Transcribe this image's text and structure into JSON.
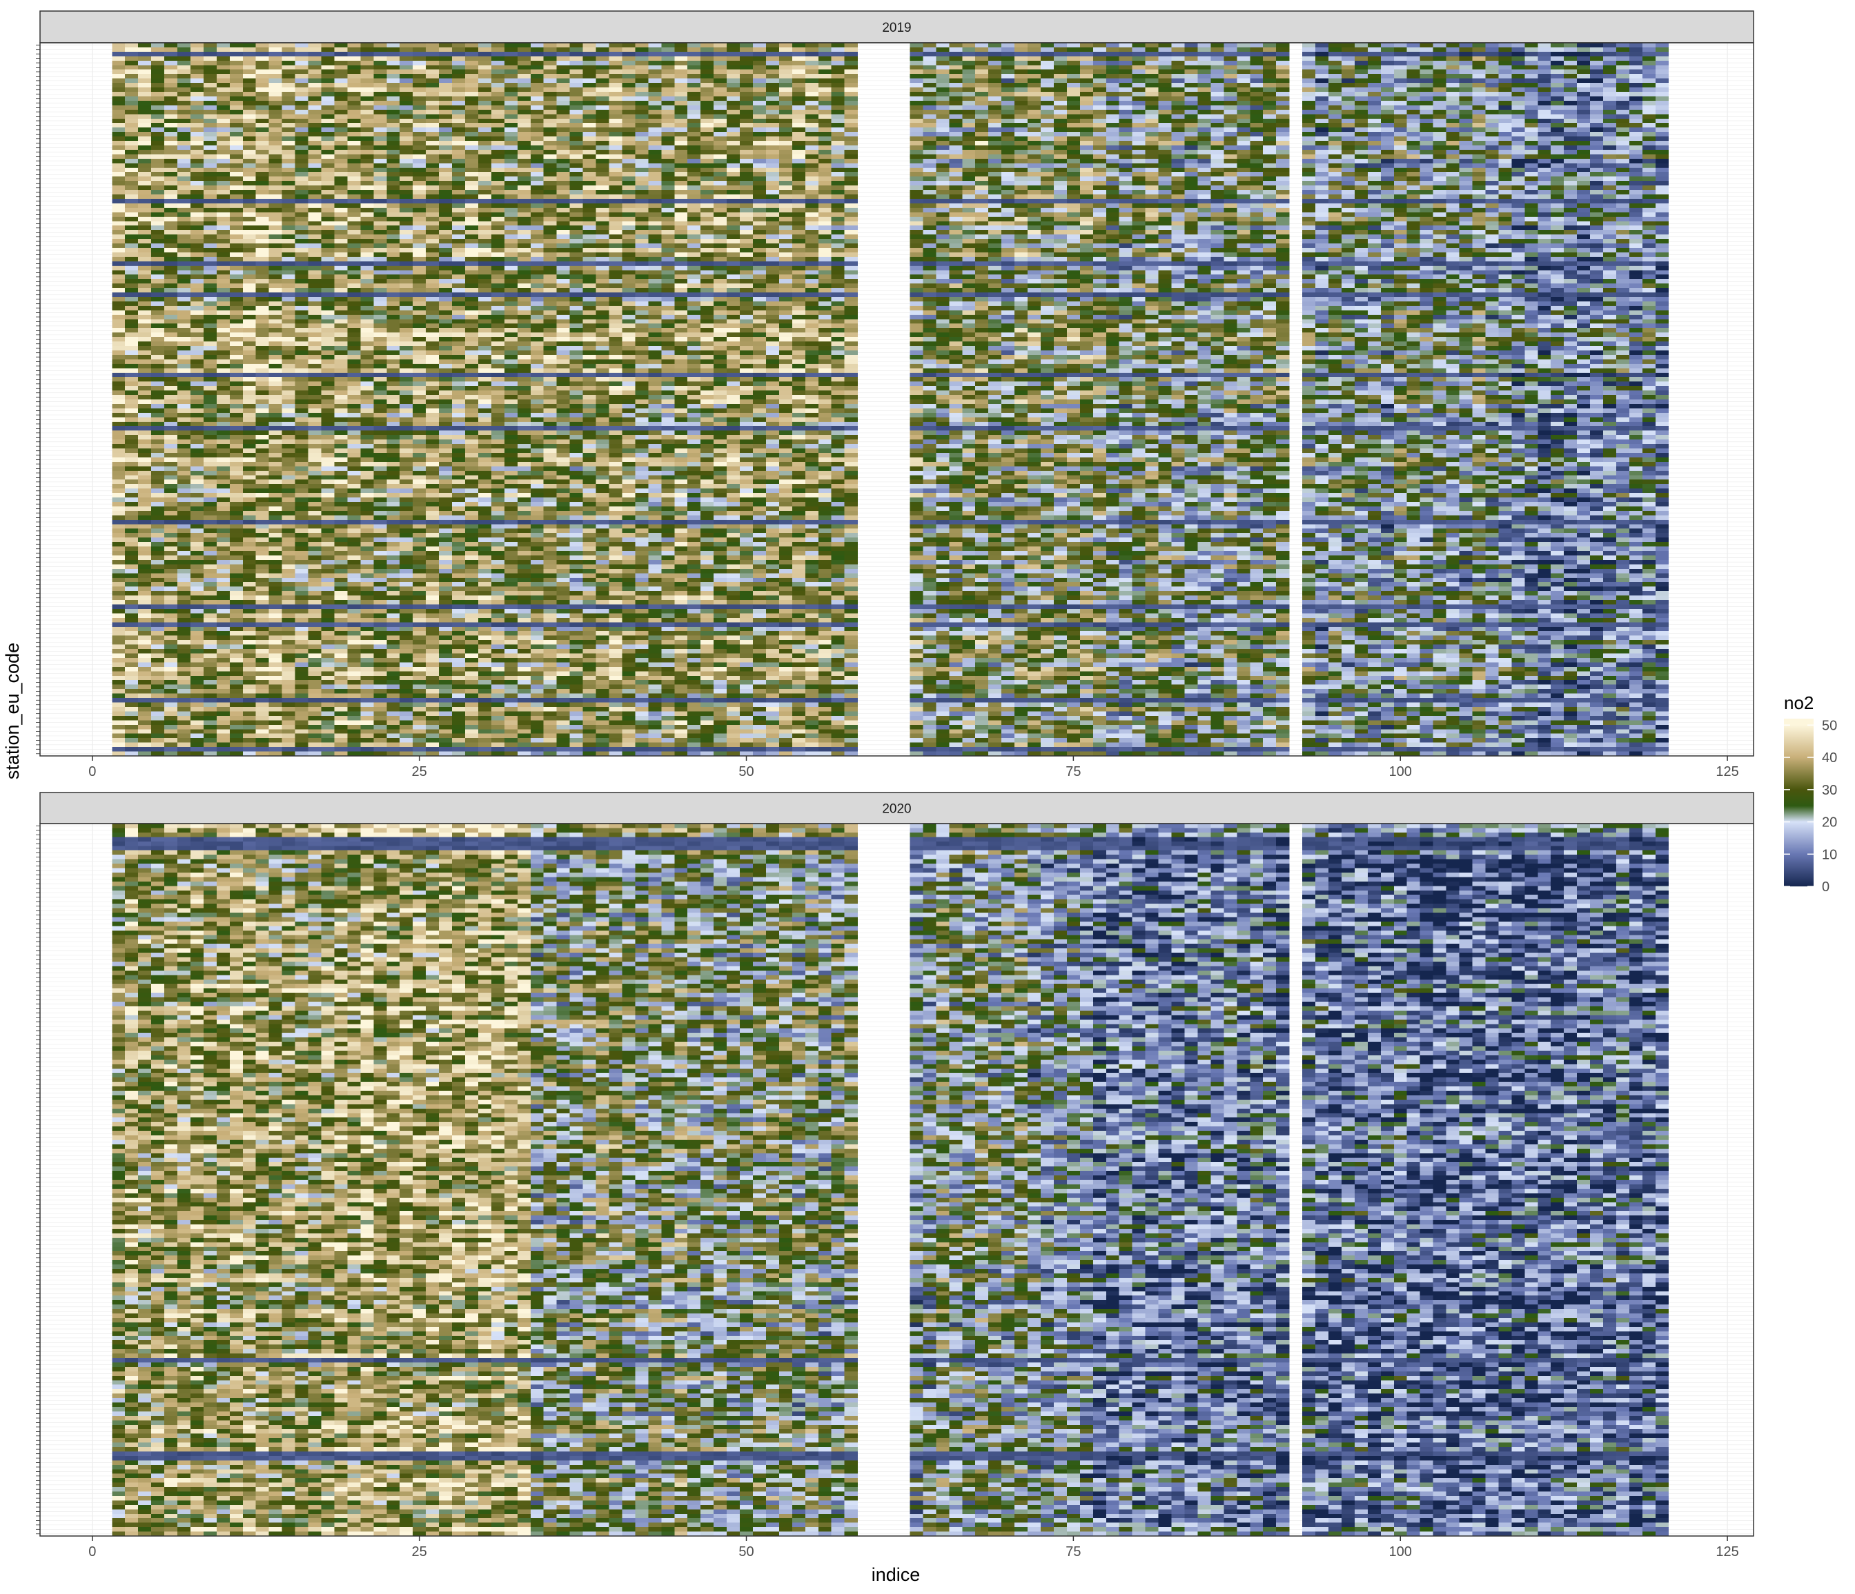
{
  "chart_data": {
    "type": "heatmap",
    "facets": [
      "2019",
      "2020"
    ],
    "xlabel": "indice",
    "ylabel": "station_eu_code",
    "xlim": [
      -4,
      127
    ],
    "x_ticks": [
      0,
      25,
      50,
      75,
      100,
      125
    ],
    "x_tick_labels": [
      "0",
      "25",
      "50",
      "75",
      "100",
      "125"
    ],
    "x_value_range": [
      2,
      120
    ],
    "missing_x": [
      59,
      60,
      61,
      62,
      92
    ],
    "n_stations": 160,
    "station_labels_visible": false,
    "legend": {
      "title": "no2",
      "ticks": [
        0,
        10,
        20,
        30,
        40,
        50
      ],
      "tick_labels": [
        "0",
        "10",
        "20",
        "30",
        "40",
        "50"
      ],
      "limits": [
        0,
        52
      ],
      "placement": "right"
    },
    "colors": {
      "0": "#15264f",
      "10": "#6877b3",
      "20": "#d7e2f8",
      "25": "#2e5a12",
      "30": "#4a560d",
      "40": "#c9b07a",
      "50": "#fdf6dc",
      "panel_background": "#ffffff",
      "grid": "#ebebeb",
      "strip_background": "#d9d9d9",
      "border": "#333333"
    },
    "mean_no2_by_period": {
      "2019": [
        {
          "x_from": 2,
          "x_to": 18,
          "mean": 36
        },
        {
          "x_from": 19,
          "x_to": 39,
          "mean": 33
        },
        {
          "x_from": 40,
          "x_to": 58,
          "mean": 33
        },
        {
          "x_from": 63,
          "x_to": 77,
          "mean": 27
        },
        {
          "x_from": 78,
          "x_to": 91,
          "mean": 25
        },
        {
          "x_from": 93,
          "x_to": 108,
          "mean": 21
        },
        {
          "x_from": 109,
          "x_to": 120,
          "mean": 15
        }
      ],
      "2020": [
        {
          "x_from": 2,
          "x_to": 18,
          "mean": 35
        },
        {
          "x_from": 19,
          "x_to": 33,
          "mean": 36
        },
        {
          "x_from": 34,
          "x_to": 58,
          "mean": 26
        },
        {
          "x_from": 63,
          "x_to": 75,
          "mean": 22
        },
        {
          "x_from": 76,
          "x_to": 91,
          "mean": 13
        },
        {
          "x_from": 93,
          "x_to": 120,
          "mean": 11
        }
      ]
    }
  }
}
